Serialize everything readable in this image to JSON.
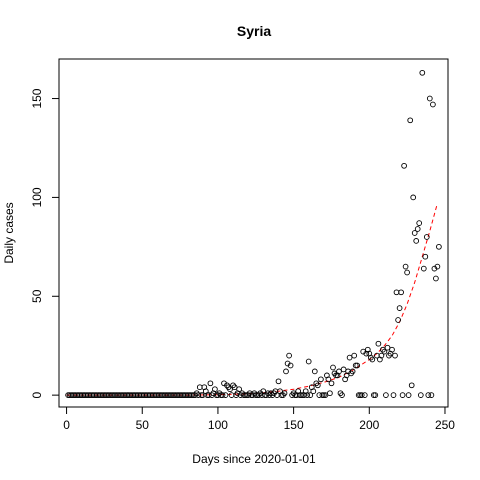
{
  "chart_data": {
    "type": "scatter",
    "title": "Syria",
    "xlabel": "Days since 2020-01-01",
    "ylabel": "Daily cases",
    "xlim": [
      -5,
      252
    ],
    "ylim": [
      -6,
      170
    ],
    "xticks": [
      0,
      50,
      100,
      150,
      200,
      250
    ],
    "yticks": [
      0,
      50,
      100,
      150
    ],
    "grid": false,
    "legend": "none",
    "point_color": "#000000",
    "fit_color": "#ff0000",
    "series": [
      {
        "points": [
          [
            1,
            0
          ],
          [
            2,
            0
          ],
          [
            3,
            0
          ],
          [
            4,
            0
          ],
          [
            5,
            0
          ],
          [
            6,
            0
          ],
          [
            7,
            0
          ],
          [
            8,
            0
          ],
          [
            9,
            0
          ],
          [
            10,
            0
          ],
          [
            11,
            0
          ],
          [
            12,
            0
          ],
          [
            13,
            0
          ],
          [
            14,
            0
          ],
          [
            15,
            0
          ],
          [
            16,
            0
          ],
          [
            17,
            0
          ],
          [
            18,
            0
          ],
          [
            19,
            0
          ],
          [
            20,
            0
          ],
          [
            21,
            0
          ],
          [
            22,
            0
          ],
          [
            23,
            0
          ],
          [
            24,
            0
          ],
          [
            25,
            0
          ],
          [
            26,
            0
          ],
          [
            27,
            0
          ],
          [
            28,
            0
          ],
          [
            29,
            0
          ],
          [
            30,
            0
          ],
          [
            31,
            0
          ],
          [
            32,
            0
          ],
          [
            33,
            0
          ],
          [
            34,
            0
          ],
          [
            35,
            0
          ],
          [
            36,
            0
          ],
          [
            37,
            0
          ],
          [
            38,
            0
          ],
          [
            39,
            0
          ],
          [
            40,
            0
          ],
          [
            41,
            0
          ],
          [
            42,
            0
          ],
          [
            43,
            0
          ],
          [
            44,
            0
          ],
          [
            45,
            0
          ],
          [
            46,
            0
          ],
          [
            47,
            0
          ],
          [
            48,
            0
          ],
          [
            49,
            0
          ],
          [
            50,
            0
          ],
          [
            51,
            0
          ],
          [
            52,
            0
          ],
          [
            53,
            0
          ],
          [
            54,
            0
          ],
          [
            55,
            0
          ],
          [
            56,
            0
          ],
          [
            57,
            0
          ],
          [
            58,
            0
          ],
          [
            59,
            0
          ],
          [
            60,
            0
          ],
          [
            61,
            0
          ],
          [
            62,
            0
          ],
          [
            63,
            0
          ],
          [
            64,
            0
          ],
          [
            65,
            0
          ],
          [
            66,
            0
          ],
          [
            67,
            0
          ],
          [
            68,
            0
          ],
          [
            69,
            0
          ],
          [
            70,
            0
          ],
          [
            71,
            0
          ],
          [
            72,
            0
          ],
          [
            73,
            0
          ],
          [
            74,
            0
          ],
          [
            75,
            0
          ],
          [
            76,
            0
          ],
          [
            77,
            0
          ],
          [
            78,
            0
          ],
          [
            79,
            0
          ],
          [
            80,
            0
          ],
          [
            81,
            0
          ],
          [
            82,
            0
          ],
          [
            83,
            0
          ],
          [
            84,
            0
          ],
          [
            85,
            0
          ],
          [
            86,
            1
          ],
          [
            87,
            0
          ],
          [
            88,
            4
          ],
          [
            89,
            0
          ],
          [
            90,
            0
          ],
          [
            91,
            4
          ],
          [
            92,
            2
          ],
          [
            93,
            0
          ],
          [
            94,
            0
          ],
          [
            95,
            6
          ],
          [
            96,
            0
          ],
          [
            97,
            1
          ],
          [
            98,
            3
          ],
          [
            99,
            0
          ],
          [
            100,
            0
          ],
          [
            101,
            1
          ],
          [
            102,
            0
          ],
          [
            103,
            0
          ],
          [
            104,
            6
          ],
          [
            105,
            0
          ],
          [
            106,
            5
          ],
          [
            107,
            4
          ],
          [
            108,
            3
          ],
          [
            109,
            0
          ],
          [
            110,
            5
          ],
          [
            111,
            4
          ],
          [
            112,
            0
          ],
          [
            113,
            1
          ],
          [
            114,
            3
          ],
          [
            115,
            0
          ],
          [
            116,
            1
          ],
          [
            117,
            0
          ],
          [
            118,
            0
          ],
          [
            119,
            0
          ],
          [
            120,
            0
          ],
          [
            121,
            1
          ],
          [
            122,
            0
          ],
          [
            123,
            0
          ],
          [
            124,
            1
          ],
          [
            125,
            0
          ],
          [
            126,
            0
          ],
          [
            127,
            0
          ],
          [
            128,
            1
          ],
          [
            129,
            0
          ],
          [
            130,
            2
          ],
          [
            131,
            0
          ],
          [
            132,
            0
          ],
          [
            133,
            1
          ],
          [
            134,
            0
          ],
          [
            135,
            1
          ],
          [
            136,
            0
          ],
          [
            137,
            1
          ],
          [
            138,
            2
          ],
          [
            139,
            0
          ],
          [
            140,
            7
          ],
          [
            141,
            2
          ],
          [
            142,
            0
          ],
          [
            143,
            0
          ],
          [
            144,
            1
          ],
          [
            145,
            12
          ],
          [
            146,
            16
          ],
          [
            147,
            20
          ],
          [
            148,
            15
          ],
          [
            149,
            0
          ],
          [
            150,
            1
          ],
          [
            151,
            0
          ],
          [
            152,
            0
          ],
          [
            153,
            2
          ],
          [
            154,
            0
          ],
          [
            155,
            0
          ],
          [
            156,
            0
          ],
          [
            157,
            0
          ],
          [
            158,
            2
          ],
          [
            159,
            0
          ],
          [
            160,
            17
          ],
          [
            161,
            0
          ],
          [
            162,
            4
          ],
          [
            163,
            2
          ],
          [
            164,
            12
          ],
          [
            165,
            6
          ],
          [
            166,
            5
          ],
          [
            167,
            0
          ],
          [
            168,
            8
          ],
          [
            169,
            0
          ],
          [
            170,
            0
          ],
          [
            171,
            0
          ],
          [
            172,
            10
          ],
          [
            173,
            8
          ],
          [
            174,
            1
          ],
          [
            175,
            6
          ],
          [
            176,
            14
          ],
          [
            177,
            11
          ],
          [
            178,
            10
          ],
          [
            179,
            10
          ],
          [
            180,
            12
          ],
          [
            181,
            1
          ],
          [
            182,
            0
          ],
          [
            183,
            13
          ],
          [
            184,
            8
          ],
          [
            185,
            10
          ],
          [
            186,
            12
          ],
          [
            187,
            19
          ],
          [
            188,
            11
          ],
          [
            189,
            12
          ],
          [
            190,
            20
          ],
          [
            191,
            15
          ],
          [
            192,
            15
          ],
          [
            193,
            0
          ],
          [
            194,
            0
          ],
          [
            195,
            0
          ],
          [
            196,
            22
          ],
          [
            197,
            0
          ],
          [
            198,
            21
          ],
          [
            199,
            23
          ],
          [
            200,
            21
          ],
          [
            201,
            19
          ],
          [
            202,
            18
          ],
          [
            203,
            0
          ],
          [
            204,
            0
          ],
          [
            205,
            20
          ],
          [
            206,
            26
          ],
          [
            207,
            18
          ],
          [
            208,
            20
          ],
          [
            209,
            23
          ],
          [
            210,
            22
          ],
          [
            211,
            0
          ],
          [
            212,
            24
          ],
          [
            213,
            20
          ],
          [
            214,
            21
          ],
          [
            215,
            23
          ],
          [
            216,
            0
          ],
          [
            217,
            20
          ],
          [
            218,
            52
          ],
          [
            219,
            38
          ],
          [
            220,
            44
          ],
          [
            221,
            52
          ],
          [
            222,
            0
          ],
          [
            223,
            116
          ],
          [
            224,
            65
          ],
          [
            225,
            62
          ],
          [
            226,
            0
          ],
          [
            227,
            139
          ],
          [
            228,
            5
          ],
          [
            229,
            100
          ],
          [
            230,
            82
          ],
          [
            231,
            78
          ],
          [
            232,
            84
          ],
          [
            233,
            87
          ],
          [
            234,
            0
          ],
          [
            235,
            163
          ],
          [
            236,
            64
          ],
          [
            237,
            70
          ],
          [
            238,
            80
          ],
          [
            239,
            0
          ],
          [
            240,
            150
          ],
          [
            241,
            0
          ],
          [
            242,
            147
          ],
          [
            243,
            64
          ],
          [
            244,
            59
          ],
          [
            245,
            65
          ],
          [
            246,
            75
          ]
        ]
      },
      {
        "type": "line",
        "style": "dashed",
        "points": [
          [
            0,
            0
          ],
          [
            20,
            0
          ],
          [
            40,
            0
          ],
          [
            60,
            0
          ],
          [
            80,
            0
          ],
          [
            100,
            0.2
          ],
          [
            110,
            0.4
          ],
          [
            120,
            0.7
          ],
          [
            130,
            1.2
          ],
          [
            140,
            2
          ],
          [
            150,
            3
          ],
          [
            160,
            4.5
          ],
          [
            170,
            6.5
          ],
          [
            180,
            9
          ],
          [
            190,
            13
          ],
          [
            200,
            18
          ],
          [
            205,
            21
          ],
          [
            210,
            25
          ],
          [
            215,
            30
          ],
          [
            220,
            37
          ],
          [
            225,
            46
          ],
          [
            230,
            57
          ],
          [
            235,
            70
          ],
          [
            240,
            83
          ],
          [
            245,
            97
          ]
        ]
      }
    ]
  }
}
